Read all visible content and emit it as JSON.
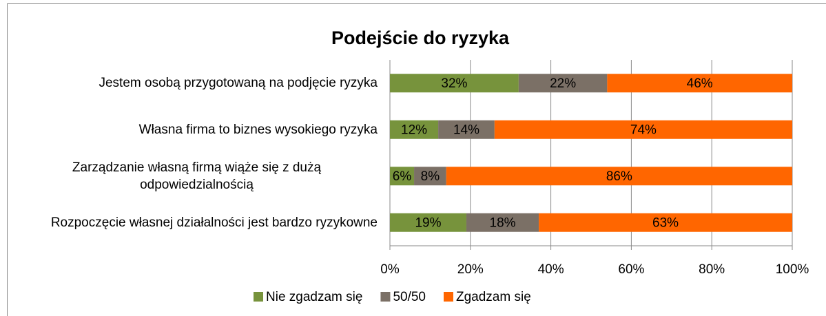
{
  "chart_data": {
    "type": "stacked_barh",
    "title": "Podejście do ryzyka",
    "categories": [
      "Jestem osobą przygotowaną na podjęcie ryzyka",
      "Własna firma to biznes wysokiego ryzyka",
      "Zarządzanie własną firmą wiąże się z dużą odpowiedzialnością",
      "Rozpoczęcie własnej działalności jest bardzo ryzykowne"
    ],
    "series": [
      {
        "name": "Nie zgadzam się",
        "color": "#77933c",
        "values": [
          32,
          12,
          6,
          19
        ],
        "value_labels": [
          "32%",
          "12%",
          "6%",
          "19%"
        ]
      },
      {
        "name": "50/50",
        "color": "#7b7066",
        "values": [
          22,
          14,
          8,
          18
        ],
        "value_labels": [
          "22%",
          "14%",
          "8%",
          "18%"
        ]
      },
      {
        "name": "Zgadzam się",
        "color": "#ff6600",
        "values": [
          46,
          74,
          86,
          63
        ],
        "value_labels": [
          "46%",
          "74%",
          "86%",
          "63%"
        ]
      }
    ],
    "xlim": [
      0,
      100
    ],
    "xticks": [
      {
        "value": 0,
        "label": "0%"
      },
      {
        "value": 20,
        "label": "20%"
      },
      {
        "value": 40,
        "label": "40%"
      },
      {
        "value": 60,
        "label": "60%"
      },
      {
        "value": 80,
        "label": "80%"
      },
      {
        "value": 100,
        "label": "100%"
      }
    ],
    "grid": true,
    "legend": "bottom"
  }
}
